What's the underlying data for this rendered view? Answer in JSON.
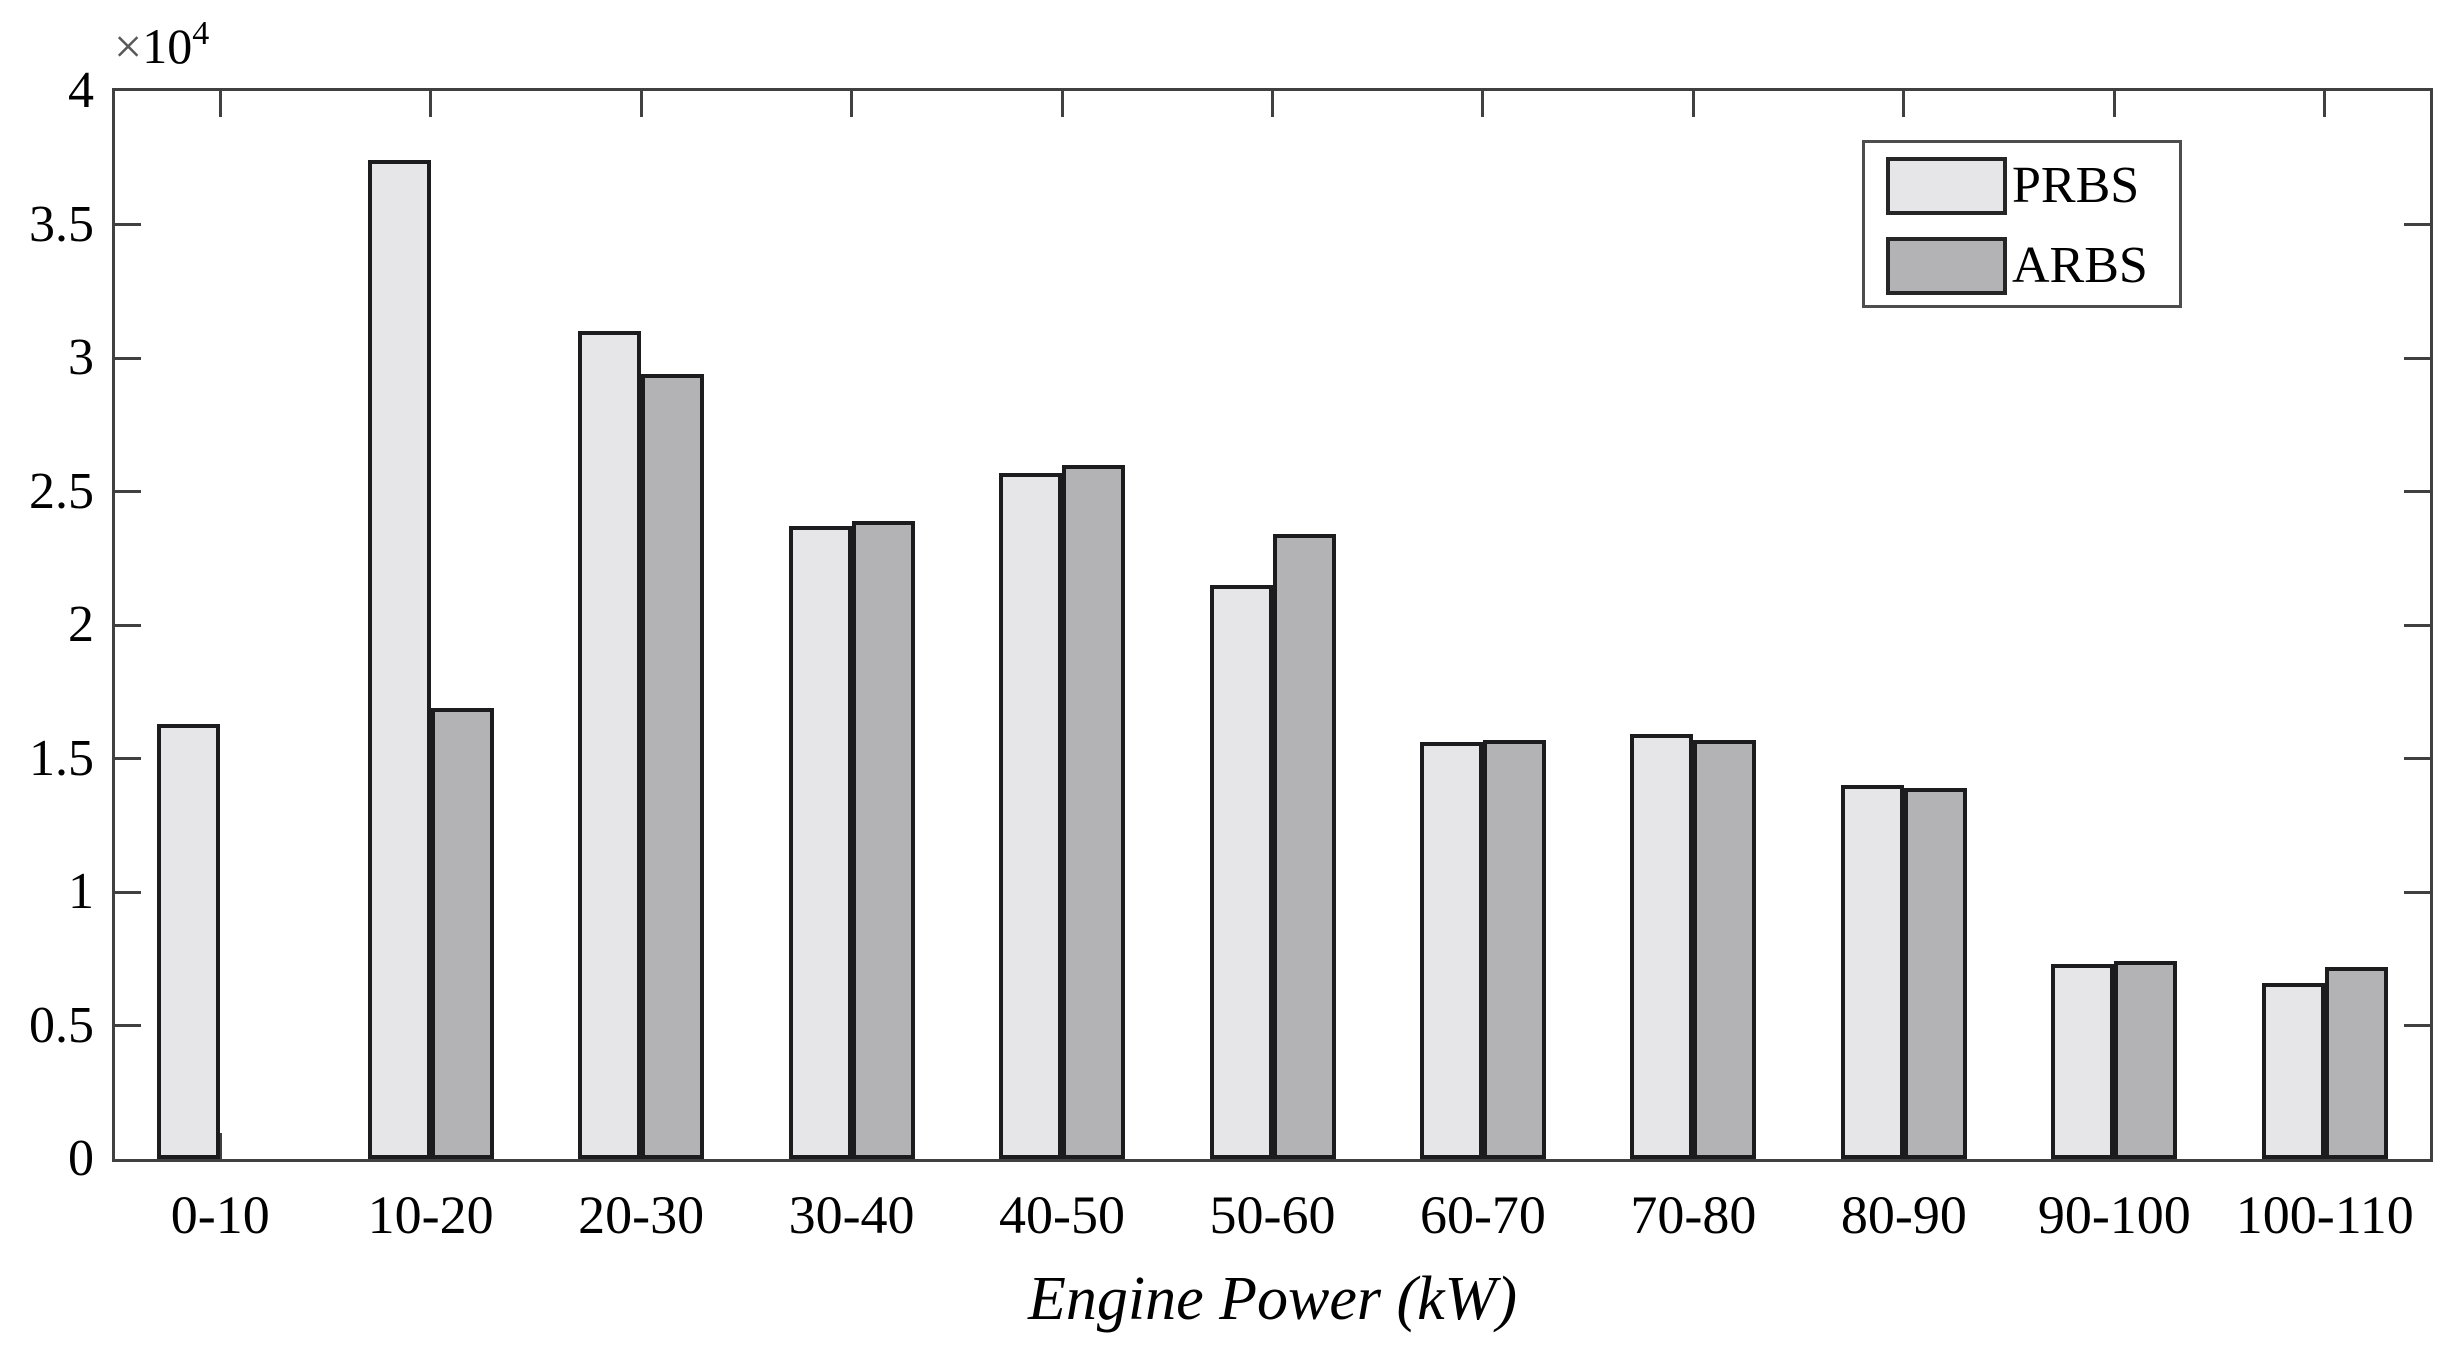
{
  "chart_data": {
    "type": "bar",
    "title": "",
    "xlabel": "Engine Power (kW)",
    "ylabel": "",
    "y_axis_offset": {
      "symbol": "×",
      "base": "10",
      "exponent": "4"
    },
    "categories": [
      "0-10",
      "10-20",
      "20-30",
      "30-40",
      "40-50",
      "50-60",
      "60-70",
      "70-80",
      "80-90",
      "90-100",
      "100-110"
    ],
    "series": [
      {
        "name": "PRBS",
        "color": "#e6e6e8",
        "values": [
          16300,
          37400,
          31000,
          23700,
          25700,
          21500,
          15600,
          15900,
          14000,
          7300,
          6600
        ]
      },
      {
        "name": "ARBS",
        "color": "#b3b3b5",
        "values": [
          0,
          16900,
          29400,
          23900,
          26000,
          23400,
          15700,
          15700,
          13900,
          7400,
          7200
        ]
      }
    ],
    "ylim": [
      0,
      40000
    ],
    "yticks": [
      0,
      5000,
      10000,
      15000,
      20000,
      25000,
      30000,
      35000,
      40000
    ],
    "ytick_labels": [
      "0",
      "0.5",
      "1",
      "1.5",
      "2",
      "2.5",
      "3",
      "3.5",
      "4"
    ],
    "grid": false,
    "legend_position": "top-right",
    "colors": {
      "axis": "#404040",
      "bar_edge": "#1c1c1e",
      "text": "#000000"
    }
  }
}
